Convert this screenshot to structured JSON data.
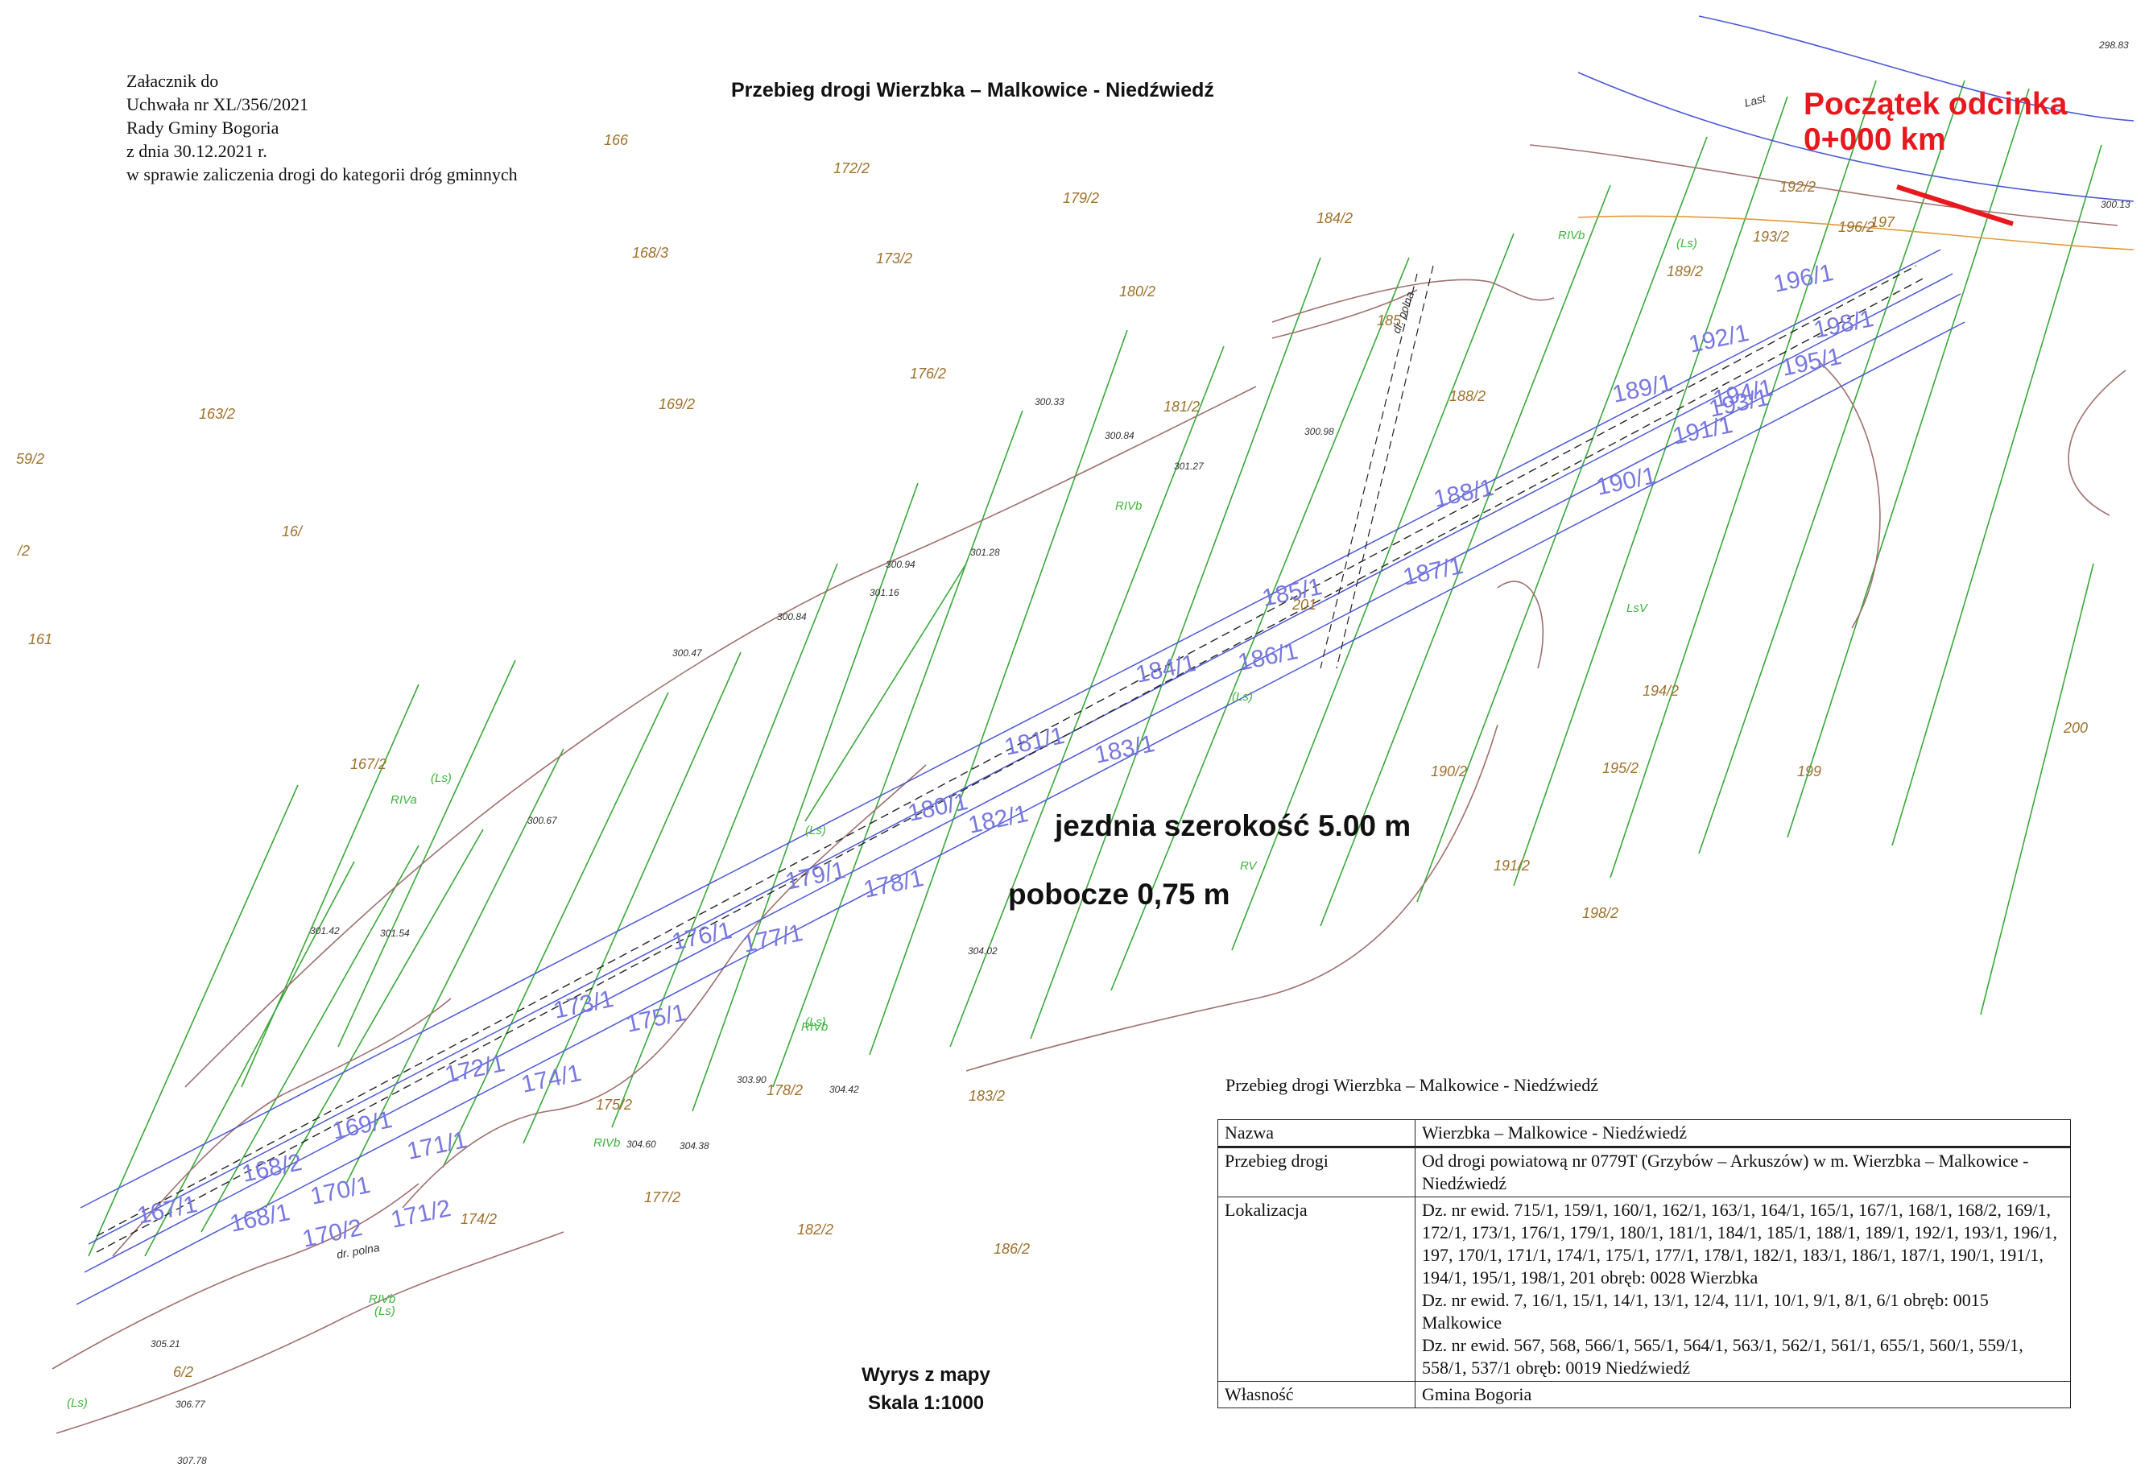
{
  "attachment": {
    "lines": [
      "Załacznik do",
      "Uchwała nr XL/356/2021",
      "Rady Gminy Bogoria",
      "z dnia 30.12.2021 r.",
      "w sprawie zaliczenia drogi do kategorii dróg gminnych"
    ]
  },
  "map_title": "Przebieg drogi Wierzbka – Malkowice - Niedźwiedź",
  "start_marker": {
    "line1": "Początek odcinka",
    "line2": "0+000 km",
    "color": "#e8191e"
  },
  "road_notes": {
    "width": "jezdnia szerokość 5.00 m",
    "shoulder": "pobocze 0,75 m"
  },
  "extract": {
    "line1": "Wyrys z mapy",
    "line2": "Skala 1:1000"
  },
  "info_table": {
    "title": "Przebieg drogi Wierzbka – Malkowice - Niedźwiedź",
    "header": {
      "key": "Nazwa",
      "value": "Wierzbka – Malkowice - Niedźwiedź"
    },
    "route": {
      "key": "Przebieg drogi",
      "value": "Od drogi powiatową nr 0779T (Grzybów – Arkuszów) w m. Wierzbka – Malkowice - Niedźwiedź"
    },
    "location": {
      "key": "Lokalizacja",
      "lines": [
        "Dz. nr ewid. 715/1, 159/1, 160/1, 162/1, 163/1, 164/1, 165/1, 167/1, 168/1, 168/2, 169/1, 172/1, 173/1, 176/1, 179/1, 180/1, 181/1, 184/1, 185/1, 188/1, 189/1, 192/1, 193/1, 196/1, 197, 170/1, 171/1, 174/1, 175/1, 177/1, 178/1, 182/1, 183/1, 186/1, 187/1, 190/1, 191/1, 194/1, 195/1, 198/1, 201 obręb: 0028 Wierzbka",
        "Dz. nr ewid.  7, 16/1, 15/1, 14/1, 13/1, 12/4, 11/1, 10/1, 9/1, 8/1, 6/1 obręb: 0015 Malkowice",
        "Dz. nr ewid.  567, 568, 566/1, 565/1, 564/1, 563/1, 562/1, 561/1, 655/1, 560/1, 559/1, 558/1, 537/1 obręb: 0019 Niedźwiedź"
      ]
    },
    "ownership": {
      "key": "Własność",
      "value": "Gmina Bogoria"
    }
  },
  "colors": {
    "parcel_line": "#3aa83a",
    "road_edge": "#4b58d8",
    "road_parcel_label": "#7878e0",
    "parcel_number": "#a0702c",
    "contour": "#a0706e",
    "land_class": "#3db53d",
    "start_segment": "#e8191e"
  },
  "parcel_labels": [
    "166",
    "172/2",
    "179/2",
    "184/2",
    "168/3",
    "173/2",
    "180/2",
    "185",
    "176/2",
    "163/2",
    "169/2",
    "181/2",
    "188/2",
    "59/2",
    "/2",
    "16/",
    "161",
    "167/2",
    "178/2",
    "183/2",
    "175/2",
    "177/2",
    "182/2",
    "186/2",
    "174/2",
    "189/2",
    "192/2",
    "193/2",
    "196/2",
    "197",
    "190/2",
    "191/2",
    "194/2",
    "195/2",
    "198/2",
    "199",
    "200",
    "201",
    "6/2"
  ],
  "road_parcel_labels": [
    "167/1",
    "168/1",
    "168/2",
    "169/1",
    "170/1",
    "170/2",
    "171/1",
    "171/2",
    "172/1",
    "173/1",
    "174/1",
    "175/1",
    "176/1",
    "177/1",
    "178/1",
    "179/1",
    "180/1",
    "181/1",
    "182/1",
    "183/1",
    "184/1",
    "185/1",
    "186/1",
    "187/1",
    "188/1",
    "189/1",
    "190/1",
    "191/1",
    "192/1",
    "193/1",
    "194/1",
    "195/1",
    "196/1",
    "198/1"
  ],
  "land_classes": [
    "RIVb",
    "(Ls)",
    "RIVb",
    "LsV",
    "(Ls)",
    "RIVa",
    "(Ls)",
    "RV",
    "RIVb",
    "(Ls)",
    "RIVb",
    "(Ls)",
    "(Ls)",
    "RIVb",
    "(Ls)"
  ],
  "elevations": [
    "300.33",
    "300.84",
    "301.27",
    "300.98",
    "300.94",
    "301.28",
    "301.16",
    "300.84",
    "300.47",
    "300.67",
    "301.42",
    "301.54",
    "304.02",
    "304.42",
    "303.90",
    "304.60",
    "304.38",
    "305.21",
    "306.77",
    "307.78",
    "298.83",
    "300.13"
  ],
  "other_labels": [
    "Last",
    "dr. polna",
    "dr. polna"
  ]
}
